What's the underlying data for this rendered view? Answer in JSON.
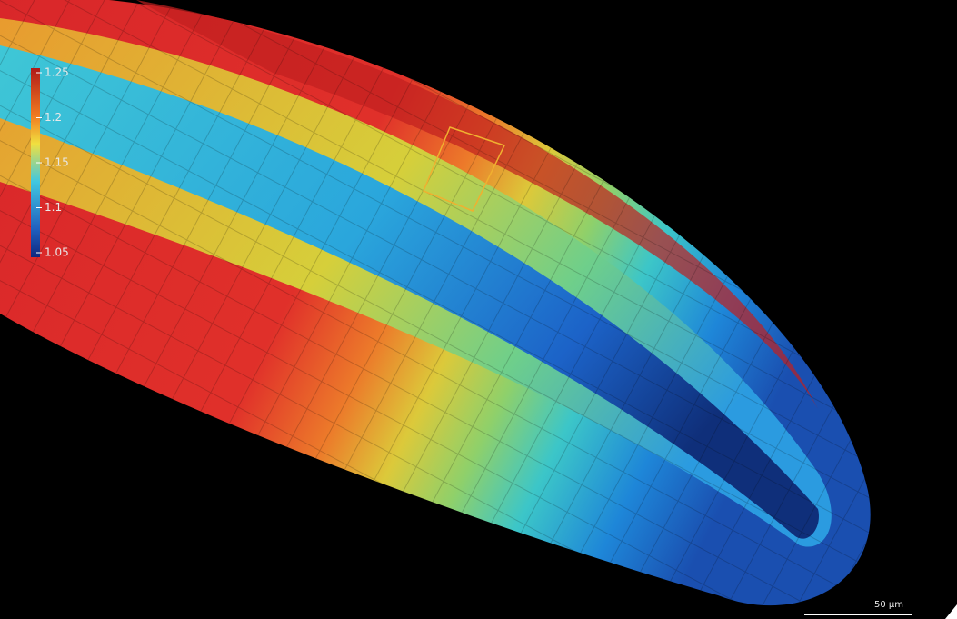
{
  "colorbar": {
    "range": [
      1.05,
      1.25
    ],
    "ticks": [
      1.25,
      1.2,
      1.15,
      1.1,
      1.05
    ]
  },
  "scale_bar": {
    "label": "50 µm"
  }
}
